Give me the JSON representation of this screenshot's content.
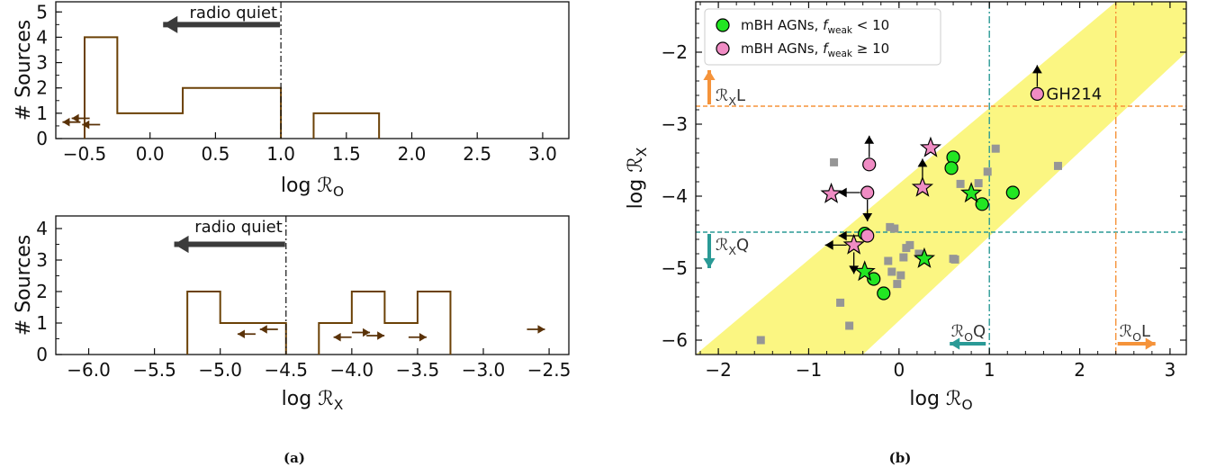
{
  "captions": {
    "a": "(a)",
    "b": "(b)"
  },
  "colors": {
    "hist": "#6b4106",
    "limit_arrow": "#5a3208",
    "green": "#22e622",
    "pink": "#f08cc4",
    "grey": "#969696",
    "band": "#fbf57b",
    "orange": "#f5933a",
    "teal": "#2a9a96",
    "quiet_arrow": "#3b3b3b"
  },
  "chart_data": [
    {
      "type": "histogram",
      "id": "hist-ro",
      "xlabel": "log ℛ",
      "xlabel_sub": "O",
      "ylabel": "# Sources",
      "xlim": [
        -0.72,
        3.2
      ],
      "ylim": [
        0,
        5.4
      ],
      "xticks": [
        -0.5,
        0.0,
        0.5,
        1.0,
        1.5,
        2.0,
        2.5,
        3.0
      ],
      "xtick_labels": [
        "−0.5",
        "0.0",
        "0.5",
        "1.0",
        "1.5",
        "2.0",
        "2.5",
        "3.0"
      ],
      "yticks": [
        0,
        1,
        2,
        3,
        4,
        5
      ],
      "ytick_labels": [
        "0",
        "1",
        "2",
        "3",
        "4",
        "5"
      ],
      "bins": [
        {
          "x0": -0.5,
          "x1": -0.25,
          "count": 4
        },
        {
          "x0": -0.25,
          "x1": 0.25,
          "count": 1
        },
        {
          "x0": 0.25,
          "x1": 1.0,
          "count": 2
        },
        {
          "x0": 1.25,
          "x1": 1.75,
          "count": 1
        }
      ],
      "threshold": 1.0,
      "threshold_label": "radio quiet",
      "quiet_arrow": {
        "from": 1.0,
        "to": 0.1,
        "y": 4.5
      },
      "limit_arrows": [
        {
          "x": -0.6,
          "y": 0.65,
          "dir": "left"
        },
        {
          "x": -0.53,
          "y": 0.8,
          "dir": "left"
        },
        {
          "x": -0.45,
          "y": 0.55,
          "dir": "left"
        }
      ]
    },
    {
      "type": "histogram",
      "id": "hist-rx",
      "xlabel": "log ℛ",
      "xlabel_sub": "X",
      "ylabel": "# Sources",
      "xlim": [
        -6.25,
        -2.35
      ],
      "ylim": [
        0,
        4.4
      ],
      "xticks": [
        -6.0,
        -5.5,
        -5.0,
        -4.5,
        -4.0,
        -3.5,
        -3.0,
        -2.5
      ],
      "xtick_labels": [
        "−6.0",
        "−5.5",
        "−5.0",
        "−4.5",
        "−4.0",
        "−3.5",
        "−3.0",
        "−2.5"
      ],
      "yticks": [
        0,
        1,
        2,
        3,
        4
      ],
      "ytick_labels": [
        "0",
        "1",
        "2",
        "3",
        "4"
      ],
      "bins": [
        {
          "x0": -5.25,
          "x1": -5.0,
          "count": 2
        },
        {
          "x0": -5.0,
          "x1": -4.5,
          "count": 1
        },
        {
          "x0": -4.25,
          "x1": -4.0,
          "count": 1
        },
        {
          "x0": -4.0,
          "x1": -3.75,
          "count": 2
        },
        {
          "x0": -3.75,
          "x1": -3.5,
          "count": 1
        },
        {
          "x0": -3.5,
          "x1": -3.25,
          "count": 2
        }
      ],
      "threshold": -4.5,
      "threshold_label": "radio quiet",
      "quiet_arrow": {
        "from": -4.5,
        "to": -5.35,
        "y": 3.5
      },
      "limit_arrows": [
        {
          "x": -4.8,
          "y": 0.65,
          "dir": "left"
        },
        {
          "x": -4.63,
          "y": 0.8,
          "dir": "left"
        },
        {
          "x": -4.07,
          "y": 0.55,
          "dir": "left"
        },
        {
          "x": -3.93,
          "y": 0.7,
          "dir": "right"
        },
        {
          "x": -3.82,
          "y": 0.6,
          "dir": "right"
        },
        {
          "x": -3.5,
          "y": 0.55,
          "dir": "right"
        },
        {
          "x": -2.6,
          "y": 0.8,
          "dir": "right"
        }
      ]
    },
    {
      "type": "scatter",
      "id": "scatter-ro-rx",
      "xlabel": "log ℛ",
      "xlabel_sub": "O",
      "ylabel": "log ℛ",
      "ylabel_sub": "X",
      "xlim": [
        -2.25,
        3.18
      ],
      "ylim": [
        -6.2,
        -1.3
      ],
      "xticks": [
        -2,
        -1,
        0,
        1,
        2,
        3
      ],
      "xtick_labels": [
        "−2",
        "−1",
        "0",
        "1",
        "2",
        "3"
      ],
      "yticks": [
        -2,
        -3,
        -4,
        -5,
        -6
      ],
      "ytick_labels": [
        "−2",
        "−3",
        "−4",
        "−5",
        "−6"
      ],
      "legend": {
        "position": "upper-left",
        "entries": [
          {
            "label": "mBH AGNs, ",
            "label_f": "f",
            "label_sub": "weak",
            "label_rel": " < 10",
            "marker": "circle",
            "color": "green"
          },
          {
            "label": "mBH AGNs, ",
            "label_f": "f",
            "label_sub": "weak",
            "label_rel": " ≥ 10",
            "marker": "circle",
            "color": "pink"
          }
        ]
      },
      "band": {
        "lower": [
          [
            -2.25,
            -6.2
          ],
          [
            -0.4,
            -6.2
          ],
          [
            3.18,
            -2.0
          ],
          [
            3.18,
            -1.3
          ],
          [
            2.4,
            -1.3
          ]
        ]
      },
      "hlines": [
        {
          "y": -2.75,
          "color": "orange",
          "label": "ℛ",
          "label_sub": "X",
          "label_tail": "L",
          "arrow": "up"
        },
        {
          "y": -4.5,
          "color": "teal",
          "label": "ℛ",
          "label_sub": "X",
          "label_tail": "Q",
          "arrow": "down"
        }
      ],
      "vlines": [
        {
          "x": 1.0,
          "color": "teal",
          "label": "ℛ",
          "label_sub": "O",
          "label_tail": "Q",
          "arrow": "left"
        },
        {
          "x": 2.4,
          "color": "orange",
          "label": "ℛ",
          "label_sub": "O",
          "label_tail": "L",
          "arrow": "right"
        }
      ],
      "grey_squares": [
        [
          -0.72,
          -3.53
        ],
        [
          -0.35,
          -4.55
        ],
        [
          -0.1,
          -4.43
        ],
        [
          -0.05,
          -4.45
        ],
        [
          -0.12,
          -4.9
        ],
        [
          -0.08,
          -5.05
        ],
        [
          -0.02,
          -5.22
        ],
        [
          0.02,
          -5.1
        ],
        [
          0.05,
          -4.85
        ],
        [
          0.08,
          -4.72
        ],
        [
          0.12,
          -4.68
        ],
        [
          0.22,
          -4.8
        ],
        [
          0.6,
          -4.87
        ],
        [
          0.62,
          -4.88
        ],
        [
          0.68,
          -3.83
        ],
        [
          0.88,
          -3.82
        ],
        [
          0.98,
          -3.66
        ],
        [
          1.07,
          -3.34
        ],
        [
          1.76,
          -3.58
        ],
        [
          -0.65,
          -5.48
        ],
        [
          -0.55,
          -5.8
        ],
        [
          -1.53,
          -6.0
        ]
      ],
      "green_circles": [
        [
          0.6,
          -3.46
        ],
        [
          0.58,
          -3.61
        ],
        [
          0.92,
          -4.11
        ],
        [
          1.26,
          -3.95
        ],
        [
          -0.28,
          -5.15
        ],
        [
          -0.17,
          -5.35
        ],
        [
          -0.38,
          -4.52
        ]
      ],
      "green_stars": [
        [
          0.8,
          -3.96
        ],
        [
          0.28,
          -4.87
        ],
        [
          -0.38,
          -5.05
        ]
      ],
      "pink_circles": [
        {
          "x": -0.33,
          "y": -3.56,
          "arrows": [
            "up"
          ]
        },
        {
          "x": -0.35,
          "y": -3.95,
          "arrows": [
            "left",
            "down"
          ]
        },
        {
          "x": -0.35,
          "y": -4.55,
          "arrows": [
            "left"
          ]
        },
        {
          "x": 1.53,
          "y": -2.58,
          "arrows": [
            "up"
          ],
          "label": "GH214"
        }
      ],
      "pink_stars": [
        {
          "x": -0.75,
          "y": -3.97,
          "arrows": []
        },
        {
          "x": 0.35,
          "y": -3.33,
          "arrows": []
        },
        {
          "x": 0.26,
          "y": -3.88,
          "arrows": [
            "up"
          ]
        },
        {
          "x": -0.5,
          "y": -4.68,
          "arrows": [
            "left",
            "down"
          ]
        }
      ]
    }
  ]
}
